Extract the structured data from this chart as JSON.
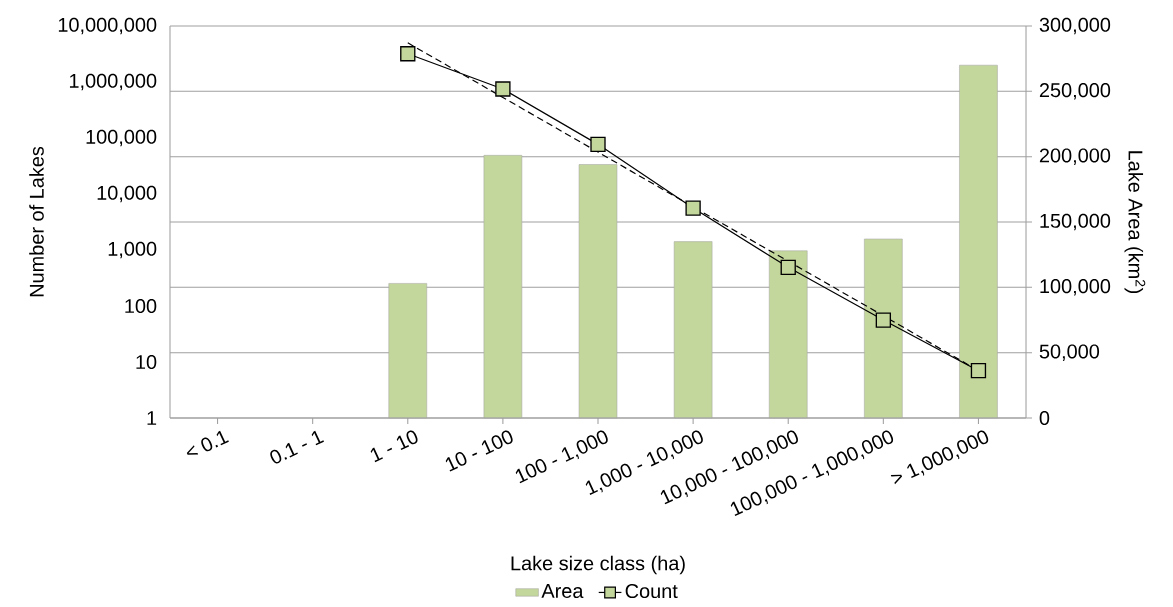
{
  "chart_data": {
    "type": "bar",
    "xlabel": "Lake size class (ha)",
    "ylabel": "Number of Lakes",
    "y2label": "Lake Area (km$^{2}$)",
    "categories": [
      "< 0.1",
      "0.1 - 1",
      "1 - 10",
      "10 - 100",
      "100 - 1,000",
      "1,000 - 10,000",
      "10,000 - 100,000",
      "100,000 - 1,000,000",
      "> 1,000,000"
    ],
    "series": [
      {
        "name": "Area",
        "axis": "y2",
        "color": "#c3d69b",
        "values": [
          null,
          null,
          103000,
          201000,
          194000,
          135000,
          128000,
          137000,
          270000
        ]
      },
      {
        "name": "Count",
        "type": "line",
        "color": "#000000",
        "marker": "square",
        "line_style": "solid",
        "colors": [
          null,
          null,
          "#c3d69b",
          "#c3d69b",
          "#c3d69b",
          "#c3d69b",
          "#c3d69b",
          "#c3d69b",
          "#c3d69b"
        ],
        "values": [
          null,
          null,
          3200000,
          750000,
          77000,
          5600,
          490,
          56,
          7
        ]
      },
      {
        "type": "line",
        "color": "#000000",
        "line_style": "dashed",
        "marker": "none",
        "values": [
          null,
          null,
          5000000,
          530000,
          56000,
          5900,
          630,
          67,
          7
        ]
      }
    ],
    "log": "y",
    "ylim": [
      1,
      10000000
    ],
    "yticks": [
      1,
      10,
      100,
      {
        "value": 1000,
        "label": "1,000"
      },
      {
        "value": 10000,
        "label": "10,000"
      },
      {
        "value": 100000,
        "label": "100,000"
      },
      {
        "value": 1000000,
        "label": "1,000,000"
      },
      {
        "value": 10000000,
        "label": "10,000,000"
      }
    ],
    "y2lim": [
      0,
      300000
    ],
    "y2ticks": [
      0,
      {
        "value": 50000,
        "label": "50,000"
      },
      {
        "value": 100000,
        "label": "100,000"
      },
      {
        "value": 150000,
        "label": "150,000"
      },
      {
        "value": 200000,
        "label": "200,000"
      },
      {
        "value": 250000,
        "label": "250,000"
      },
      {
        "value": 300000,
        "label": "300,000"
      }
    ],
    "grid": "y",
    "legend": "bottom"
  }
}
